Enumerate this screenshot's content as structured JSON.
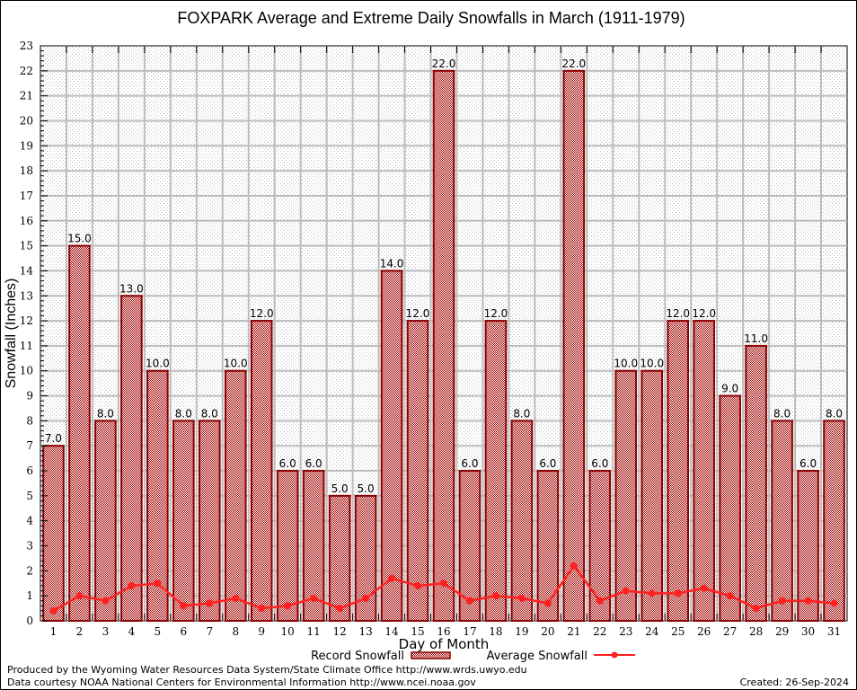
{
  "chart_data": {
    "type": "bar",
    "title": "FOXPARK Average and Extreme Daily Snowfalls in March (1911-1979)",
    "xlabel": "Day of Month",
    "ylabel": "Snowfall (Inches)",
    "ylim": [
      0,
      23
    ],
    "yticks": [
      0,
      1,
      2,
      3,
      4,
      5,
      6,
      7,
      8,
      9,
      10,
      11,
      12,
      13,
      14,
      15,
      16,
      17,
      18,
      19,
      20,
      21,
      22,
      23
    ],
    "grid": true,
    "legend_position": "bottom-center",
    "categories": [
      "1",
      "2",
      "3",
      "4",
      "5",
      "6",
      "7",
      "8",
      "9",
      "10",
      "11",
      "12",
      "13",
      "14",
      "15",
      "16",
      "17",
      "18",
      "19",
      "20",
      "21",
      "22",
      "23",
      "24",
      "25",
      "26",
      "27",
      "28",
      "29",
      "30",
      "31"
    ],
    "series": [
      {
        "name": "Record Snowfall",
        "type": "bar",
        "color": "#8b0000",
        "values": [
          7.0,
          15.0,
          8.0,
          13.0,
          10.0,
          8.0,
          8.0,
          10.0,
          12.0,
          6.0,
          6.0,
          5.0,
          5.0,
          14.0,
          12.0,
          22.0,
          6.0,
          12.0,
          8.0,
          6.0,
          22.0,
          6.0,
          10.0,
          10.0,
          12.0,
          12.0,
          9.0,
          11.0,
          8.0,
          6.0,
          8.0
        ],
        "labels": [
          "7.0",
          "15.0",
          "8.0",
          "13.0",
          "10.0",
          "8.0",
          "8.0",
          "10.0",
          "12.0",
          "6.0",
          "6.0",
          "5.0",
          "5.0",
          "14.0",
          "12.0",
          "22.0",
          "6.0",
          "12.0",
          "8.0",
          "6.0",
          "22.0",
          "6.0",
          "10.0",
          "10.0",
          "12.0",
          "12.0",
          "9.0",
          "11.0",
          "8.0",
          "6.0",
          "8.0"
        ]
      },
      {
        "name": "Average Snowfall",
        "type": "line",
        "color": "#ff2020",
        "values": [
          0.4,
          1.0,
          0.8,
          1.4,
          1.5,
          0.6,
          0.7,
          0.9,
          0.5,
          0.6,
          0.9,
          0.5,
          0.9,
          1.7,
          1.4,
          1.5,
          0.8,
          1.0,
          0.9,
          0.7,
          2.2,
          0.8,
          1.2,
          1.1,
          1.1,
          1.3,
          1.0,
          0.5,
          0.8,
          0.8,
          0.7
        ]
      }
    ]
  },
  "footer": {
    "credit_line1": "Produced by the Wyoming Water Resources Data System/State Climate Office http://www.wrds.uwyo.edu",
    "credit_line2": "Data courtesy NOAA National Centers for Environmental Information http://www.ncei.noaa.gov",
    "created": "Created:  26-Sep-2024"
  }
}
